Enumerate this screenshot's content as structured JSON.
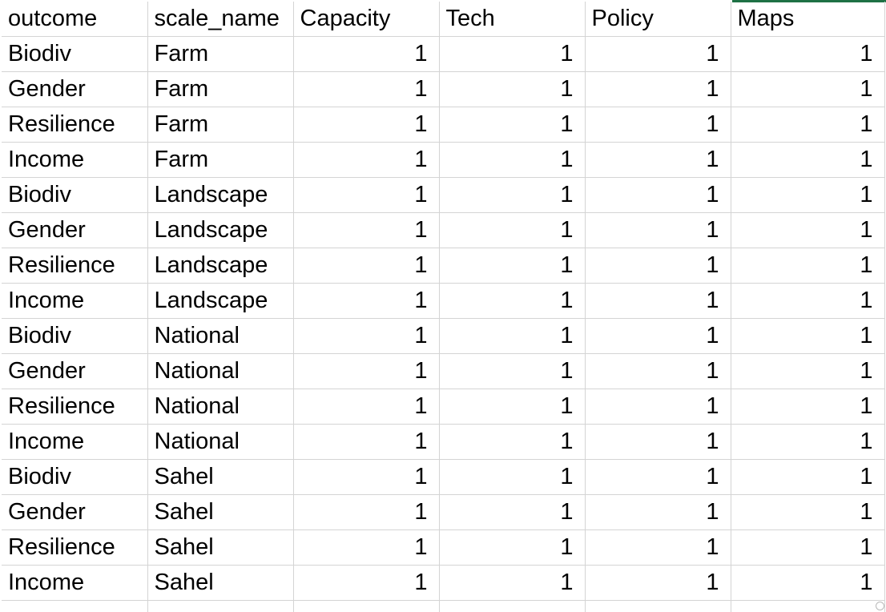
{
  "columns": [
    "outcome",
    "scale_name",
    "Capacity",
    "Tech",
    "Policy",
    "Maps"
  ],
  "rows": [
    [
      "Biodiv",
      "Farm",
      "1",
      "1",
      "1",
      "1"
    ],
    [
      "Gender",
      "Farm",
      "1",
      "1",
      "1",
      "1"
    ],
    [
      "Resilience",
      "Farm",
      "1",
      "1",
      "1",
      "1"
    ],
    [
      "Income",
      "Farm",
      "1",
      "1",
      "1",
      "1"
    ],
    [
      "Biodiv",
      "Landscape",
      "1",
      "1",
      "1",
      "1"
    ],
    [
      "Gender",
      "Landscape",
      "1",
      "1",
      "1",
      "1"
    ],
    [
      "Resilience",
      "Landscape",
      "1",
      "1",
      "1",
      "1"
    ],
    [
      "Income",
      "Landscape",
      "1",
      "1",
      "1",
      "1"
    ],
    [
      "Biodiv",
      "National",
      "1",
      "1",
      "1",
      "1"
    ],
    [
      "Gender",
      "National",
      "1",
      "1",
      "1",
      "1"
    ],
    [
      "Resilience",
      "National",
      "1",
      "1",
      "1",
      "1"
    ],
    [
      "Income",
      "National",
      "1",
      "1",
      "1",
      "1"
    ],
    [
      "Biodiv",
      "Sahel",
      "1",
      "1",
      "1",
      "1"
    ],
    [
      "Gender",
      "Sahel",
      "1",
      "1",
      "1",
      "1"
    ],
    [
      "Resilience",
      "Sahel",
      "1",
      "1",
      "1",
      "1"
    ],
    [
      "Income",
      "Sahel",
      "1",
      "1",
      "1",
      "1"
    ]
  ],
  "colors": {
    "gridline": "#d4d4d4",
    "selection_accent": "#1e7145",
    "text": "#000000",
    "background": "#ffffff"
  }
}
